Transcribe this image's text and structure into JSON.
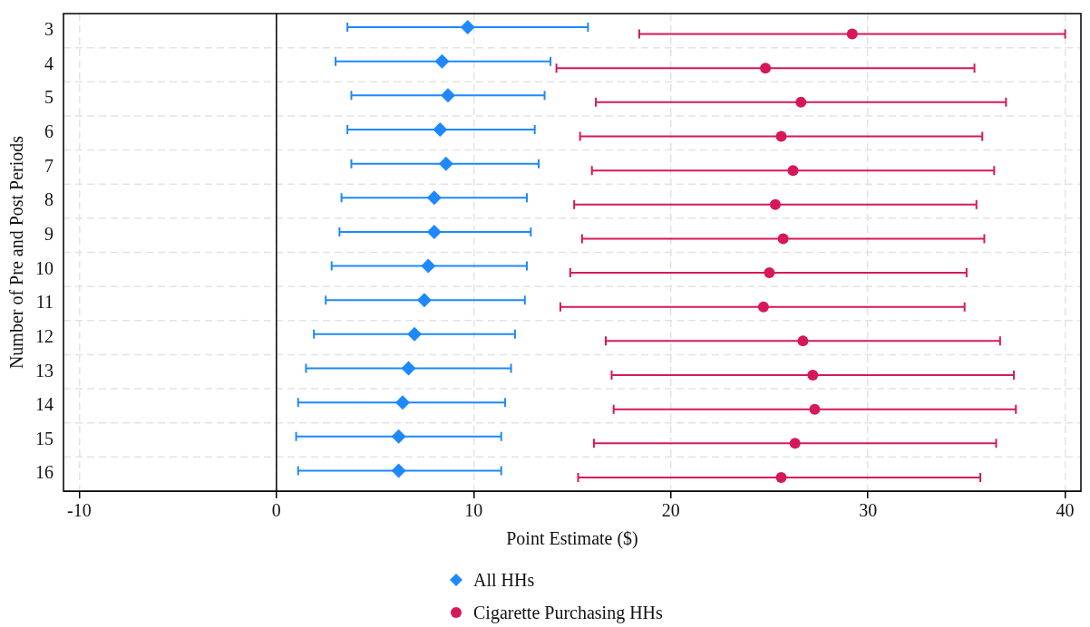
{
  "chart_data": {
    "type": "scatter",
    "orientation": "horizontal",
    "xlabel": "Point Estimate ($)",
    "ylabel": "Number of Pre and Post Periods",
    "categories": [
      "3",
      "4",
      "5",
      "6",
      "7",
      "8",
      "9",
      "10",
      "11",
      "12",
      "13",
      "14",
      "15",
      "16"
    ],
    "xlim": [
      -10.8,
      40.8
    ],
    "xticks": [
      -10,
      0,
      10,
      20,
      30,
      40
    ],
    "grid": true,
    "legend": "bottom",
    "ref_lines": [
      {
        "axis": "x",
        "value": 0,
        "color": "#000000"
      }
    ],
    "series": [
      {
        "name": "All HHs",
        "color": "#1e88ff",
        "marker": "diamond",
        "values": [
          9.7,
          8.4,
          8.7,
          8.3,
          8.6,
          8.0,
          8.0,
          7.7,
          7.5,
          7.0,
          6.7,
          6.4,
          6.2,
          6.2
        ],
        "errors": [
          [
            3.6,
            15.8
          ],
          [
            3.0,
            13.9
          ],
          [
            3.8,
            13.6
          ],
          [
            3.6,
            13.1
          ],
          [
            3.8,
            13.3
          ],
          [
            3.3,
            12.7
          ],
          [
            3.2,
            12.9
          ],
          [
            2.8,
            12.7
          ],
          [
            2.5,
            12.6
          ],
          [
            1.9,
            12.1
          ],
          [
            1.5,
            11.9
          ],
          [
            1.1,
            11.6
          ],
          [
            1.0,
            11.4
          ],
          [
            1.1,
            11.4
          ]
        ]
      },
      {
        "name": "Cigarette Purchasing HHs",
        "color": "#d6185a",
        "marker": "circle",
        "values": [
          29.2,
          24.8,
          26.6,
          25.6,
          26.2,
          25.3,
          25.7,
          25.0,
          24.7,
          26.7,
          27.2,
          27.3,
          26.3,
          25.6
        ],
        "errors": [
          [
            18.4,
            40.0
          ],
          [
            14.2,
            35.4
          ],
          [
            16.2,
            37.0
          ],
          [
            15.4,
            35.8
          ],
          [
            16.0,
            36.4
          ],
          [
            15.1,
            35.5
          ],
          [
            15.5,
            35.9
          ],
          [
            14.9,
            35.0
          ],
          [
            14.4,
            34.9
          ],
          [
            16.7,
            36.7
          ],
          [
            17.0,
            37.4
          ],
          [
            17.1,
            37.5
          ],
          [
            16.1,
            36.5
          ],
          [
            15.3,
            35.7
          ]
        ]
      }
    ]
  }
}
